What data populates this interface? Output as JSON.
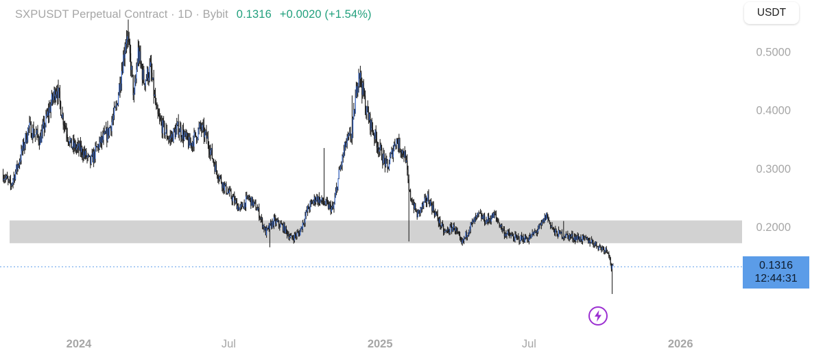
{
  "header": {
    "title": "SXPUSDT Perpetual Contract · 1D · Bybit",
    "last_price": "0.1316",
    "change": "+0.0020 (+1.54%)"
  },
  "currency_label": "USDT",
  "price_tag": {
    "price": "0.1316",
    "countdown": "12:44:31"
  },
  "colors": {
    "up_change": "#22a07d",
    "candle": "#111111",
    "candle_highlight": "#3b6fd8",
    "support_zone": "#d2d2d2",
    "price_line": "#5b9ce8",
    "price_tag_bg": "#5b9ce8",
    "axis_text": "#a6a6a6",
    "bolt_icon": "#9b2fd1"
  },
  "icons": {
    "event_marker": "lightning-bolt-icon"
  },
  "chart_data": {
    "type": "candlestick",
    "symbol": "SXPUSDT",
    "interval": "1D",
    "exchange": "Bybit",
    "y_unit": "USDT",
    "y_ticks": [
      "0.5000",
      "0.4000",
      "0.3000",
      "0.2000"
    ],
    "ylim": [
      0.1,
      0.55
    ],
    "x_ticks": [
      "2024",
      "Jul",
      "2025",
      "Jul",
      "2026"
    ],
    "x_tick_dates": [
      "2024-01-01",
      "2024-07-01",
      "2025-01-01",
      "2025-07-01",
      "2026-01-01"
    ],
    "x_range": [
      "2023-10-01",
      "2026-03-15"
    ],
    "support_zone": [
      0.172,
      0.211
    ],
    "current_price": 0.1316,
    "price_path": [
      [
        "2023-10-01",
        0.29
      ],
      [
        "2023-10-10",
        0.27
      ],
      [
        "2023-10-20",
        0.31
      ],
      [
        "2023-11-01",
        0.37
      ],
      [
        "2023-11-15",
        0.35
      ],
      [
        "2023-11-28",
        0.41
      ],
      [
        "2023-12-05",
        0.44
      ],
      [
        "2023-12-12",
        0.39
      ],
      [
        "2023-12-22",
        0.34
      ],
      [
        "2024-01-05",
        0.33
      ],
      [
        "2024-01-15",
        0.31
      ],
      [
        "2024-01-25",
        0.34
      ],
      [
        "2024-02-05",
        0.36
      ],
      [
        "2024-02-15",
        0.4
      ],
      [
        "2024-02-22",
        0.47
      ],
      [
        "2024-02-28",
        0.53
      ],
      [
        "2024-03-04",
        0.48
      ],
      [
        "2024-03-08",
        0.42
      ],
      [
        "2024-03-13",
        0.5
      ],
      [
        "2024-03-20",
        0.45
      ],
      [
        "2024-03-28",
        0.47
      ],
      [
        "2024-04-05",
        0.39
      ],
      [
        "2024-04-12",
        0.37
      ],
      [
        "2024-04-20",
        0.35
      ],
      [
        "2024-05-01",
        0.37
      ],
      [
        "2024-05-15",
        0.34
      ],
      [
        "2024-05-28",
        0.37
      ],
      [
        "2024-06-05",
        0.35
      ],
      [
        "2024-06-15",
        0.3
      ],
      [
        "2024-06-25",
        0.27
      ],
      [
        "2024-07-05",
        0.25
      ],
      [
        "2024-07-15",
        0.23
      ],
      [
        "2024-07-25",
        0.25
      ],
      [
        "2024-08-05",
        0.23
      ],
      [
        "2024-08-15",
        0.19
      ],
      [
        "2024-08-25",
        0.21
      ],
      [
        "2024-09-05",
        0.2
      ],
      [
        "2024-09-15",
        0.18
      ],
      [
        "2024-09-25",
        0.19
      ],
      [
        "2024-10-05",
        0.23
      ],
      [
        "2024-10-15",
        0.25
      ],
      [
        "2024-10-25",
        0.24
      ],
      [
        "2024-11-05",
        0.23
      ],
      [
        "2024-11-12",
        0.29
      ],
      [
        "2024-11-20",
        0.34
      ],
      [
        "2024-11-28",
        0.36
      ],
      [
        "2024-12-03",
        0.43
      ],
      [
        "2024-12-06",
        0.47
      ],
      [
        "2024-12-10",
        0.44
      ],
      [
        "2024-12-15",
        0.4
      ],
      [
        "2024-12-22",
        0.37
      ],
      [
        "2025-01-01",
        0.33
      ],
      [
        "2025-01-10",
        0.3
      ],
      [
        "2025-01-20",
        0.35
      ],
      [
        "2025-02-01",
        0.32
      ],
      [
        "2025-02-05",
        0.26
      ],
      [
        "2025-02-15",
        0.22
      ],
      [
        "2025-02-28",
        0.25
      ],
      [
        "2025-03-10",
        0.22
      ],
      [
        "2025-03-20",
        0.19
      ],
      [
        "2025-04-01",
        0.2
      ],
      [
        "2025-04-10",
        0.17
      ],
      [
        "2025-04-20",
        0.2
      ],
      [
        "2025-05-01",
        0.22
      ],
      [
        "2025-05-10",
        0.21
      ],
      [
        "2025-05-20",
        0.22
      ],
      [
        "2025-06-01",
        0.19
      ],
      [
        "2025-06-15",
        0.18
      ],
      [
        "2025-07-01",
        0.18
      ],
      [
        "2025-07-15",
        0.2
      ],
      [
        "2025-07-22",
        0.22
      ],
      [
        "2025-08-01",
        0.19
      ],
      [
        "2025-08-15",
        0.185
      ],
      [
        "2025-09-01",
        0.18
      ],
      [
        "2025-09-15",
        0.175
      ],
      [
        "2025-09-25",
        0.165
      ],
      [
        "2025-10-05",
        0.16
      ],
      [
        "2025-10-09",
        0.13
      ],
      [
        "2025-10-10",
        0.13
      ],
      [
        "2025-10-11",
        0.1316
      ]
    ],
    "notable_wicks": [
      [
        "2024-03-01",
        0.555
      ],
      [
        "2024-08-20",
        0.165
      ],
      [
        "2024-10-25",
        0.335
      ],
      [
        "2024-11-28",
        0.425
      ],
      [
        "2025-02-05",
        0.175
      ],
      [
        "2025-08-12",
        0.21
      ],
      [
        "2025-10-10",
        0.085
      ]
    ]
  }
}
